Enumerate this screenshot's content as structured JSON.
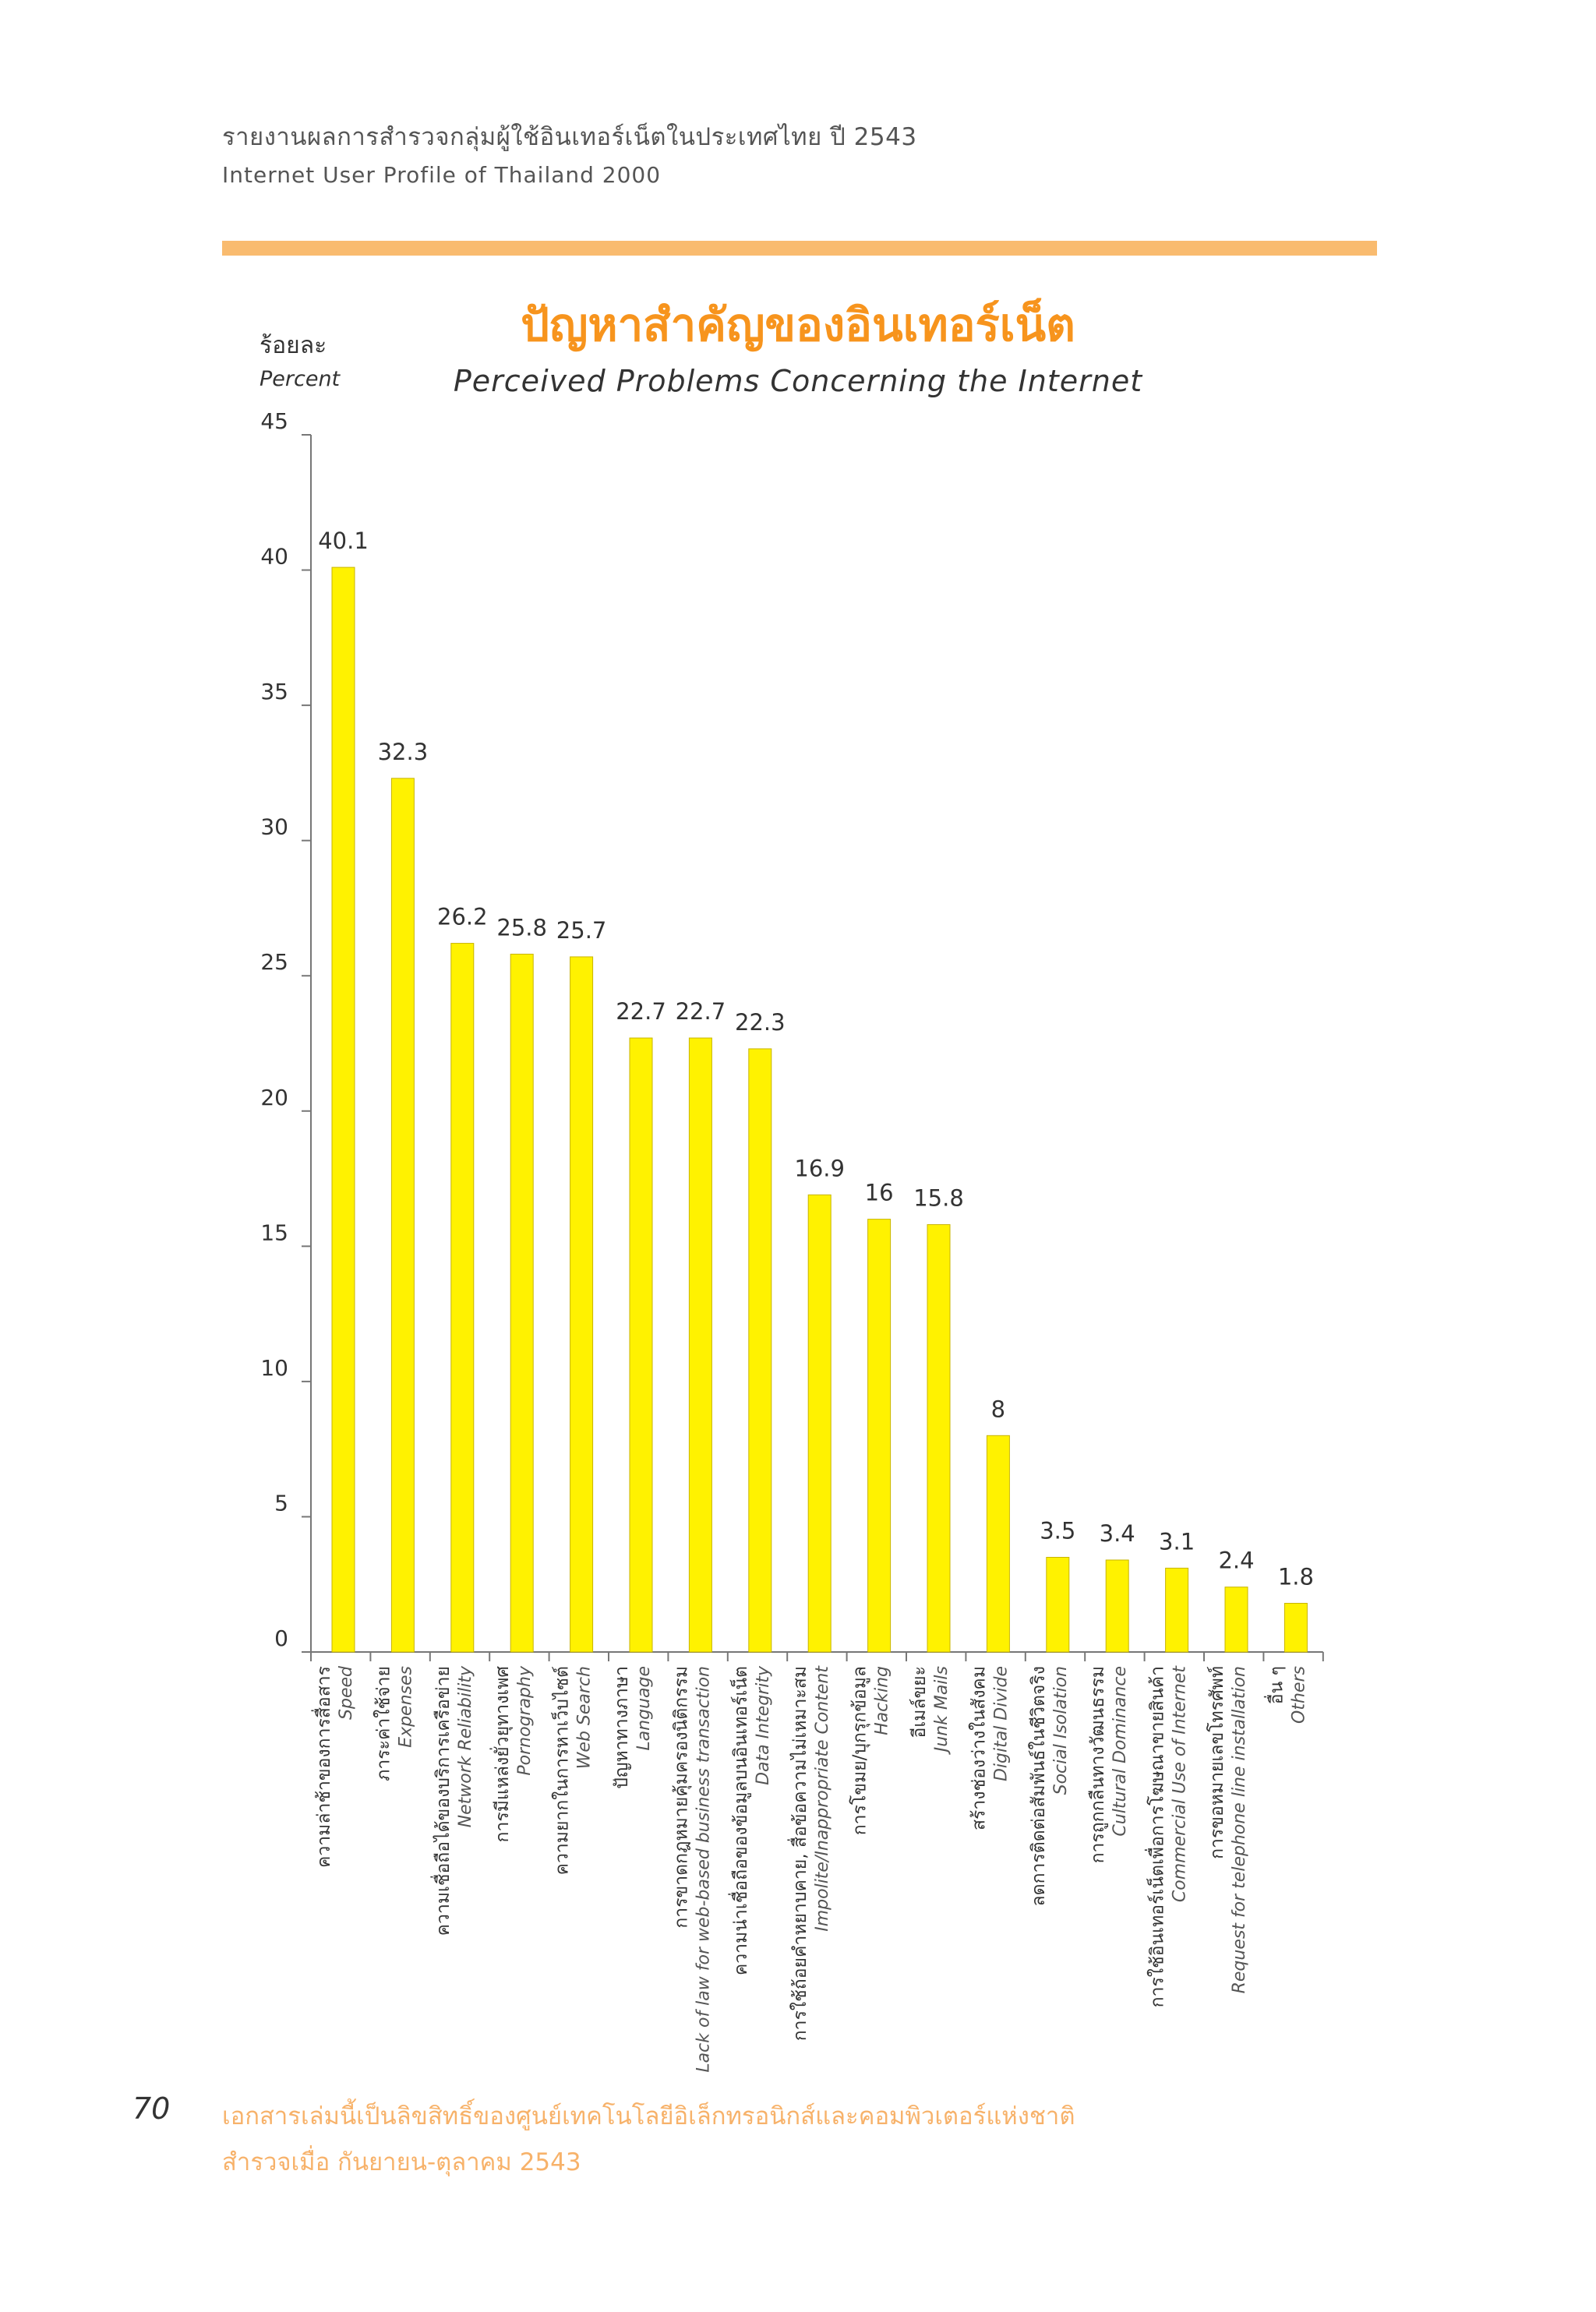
{
  "header": {
    "thai": "รายงานผลการสำรวจกลุ่มผู้ใช้อินเทอร์เน็ตในประเทศไทย ปี 2543",
    "english": "Internet User Profile of Thailand 2000"
  },
  "colors": {
    "bar": "#fff200",
    "bar_edge": "#c8b400",
    "title": "#f7941d",
    "band": "#f9bb6f",
    "footer": "#f7b26a"
  },
  "chart_data": {
    "type": "bar",
    "title": "ปัญหาสำคัญของอินเทอร์เน็ต",
    "subtitle": "Perceived Problems Concerning the Internet",
    "ylabel_th": "ร้อยละ",
    "ylabel": "Percent",
    "ylim": [
      0,
      45
    ],
    "yticks": [
      0,
      5,
      10,
      15,
      20,
      25,
      30,
      35,
      40,
      45
    ],
    "categories_th": [
      "ความล่าช้าของการสื่อสาร",
      "ภาระค่าใช้จ่าย",
      "ความเชื่อถือได้ของบริการเครือข่าย",
      "การมีแหล่งยั่วยุทางเพศ",
      "ความยากในการหาเว็บไซต์",
      "ปัญหาทางภาษา",
      "การขาดกฎหมายคุ้มครองนิติกรรม",
      "ความน่าเชื่อถือของข้อมูลบนอินเทอร์เน็ต",
      "การใช้ถ้อยคำหยาบคาย, สื่อข้อความไม่เหมาะสม",
      "การโขมย/บุกรุกข้อมูล",
      "อีเมล์ขยะ",
      "สร้างช่องว่างในสังคม",
      "ลดการติดต่อสัมพันธ์ในชีวิตจริง",
      "การถูกกลืนทางวัฒนธรรม",
      "การใช้อินเทอร์เน็ตเพื่อการโฆษณาขายสินค้า",
      "การขอหมายเลขโทรศัพท์",
      "อื่น ๆ"
    ],
    "categories": [
      "Speed",
      "Expenses",
      "Network Reliability",
      "Pornography",
      "Web Search",
      "Language",
      "Lack of law for web-based business transaction",
      "Data Integrity",
      "Impolite/Inappropriate Content",
      "Hacking",
      "Junk Mails",
      "Digital Divide",
      "Social Isolation",
      "Cultural Dominance",
      "Commercial Use of Internet",
      "Request for telephone line installation",
      "Others"
    ],
    "values": [
      40.1,
      32.3,
      26.2,
      25.8,
      25.7,
      22.7,
      22.7,
      22.3,
      16.9,
      16,
      15.8,
      8,
      3.5,
      3.4,
      3.1,
      2.4,
      1.8
    ],
    "value_labels": [
      "40.1",
      "32.3",
      "26.2",
      "25.8",
      "25.7",
      "22.7",
      "22.7",
      "22.3",
      "16.9",
      "16",
      "15.8",
      "8",
      "3.5",
      "3.4",
      "3.1",
      "2.4",
      "1.8"
    ]
  },
  "footer": {
    "page_number": "70",
    "line1": "เอกสารเล่มนี้เป็นลิขสิทธิ์ของศูนย์เทคโนโลยีอิเล็กทรอนิกส์และคอมพิวเตอร์แห่งชาติ",
    "line2": "สำรวจเมื่อ กันยายน-ตุลาคม 2543"
  }
}
